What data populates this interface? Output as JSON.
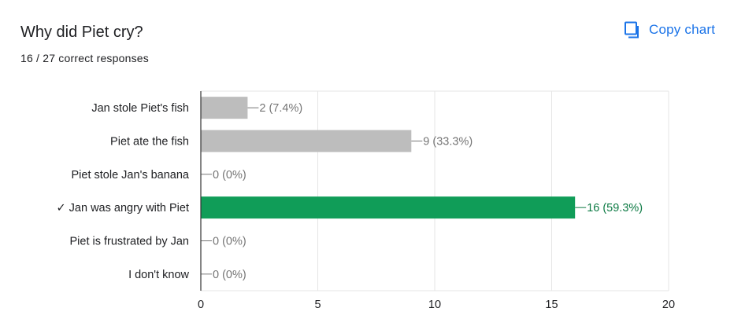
{
  "question": {
    "title": "Why did Piet cry?",
    "responses_summary": "16 / 27 correct responses"
  },
  "copy_button": {
    "label": "Copy chart",
    "icon": "copy-icon"
  },
  "colors": {
    "incorrect_bar": "#bdbdbd",
    "correct_bar": "#109d58",
    "correct_label": "#0d7a44",
    "label_gray": "#757575",
    "accent": "#1a73e8"
  },
  "chart_data": {
    "type": "bar",
    "orientation": "horizontal",
    "categories": [
      "Jan stole Piet's fish",
      "Piet ate the fish",
      "Piet stole Jan's banana",
      "✓ Jan was angry with Piet",
      "Piet is frustrated by Jan",
      "I don't know"
    ],
    "values": [
      2,
      9,
      0,
      16,
      0,
      0
    ],
    "value_labels": [
      "2 (7.4%)",
      "9 (33.3%)",
      "0 (0%)",
      "16 (59.3%)",
      "0 (0%)",
      "0 (0%)"
    ],
    "correct": [
      false,
      false,
      false,
      true,
      false,
      false
    ],
    "xlim": [
      0,
      20
    ],
    "xticks": [
      "0",
      "5",
      "10",
      "15",
      "20"
    ],
    "grid": true,
    "title": "",
    "xlabel": "",
    "ylabel": ""
  }
}
